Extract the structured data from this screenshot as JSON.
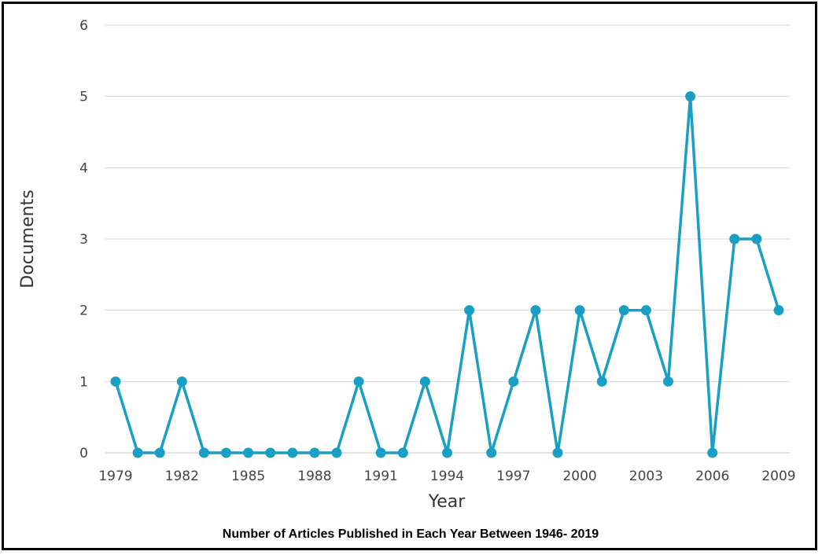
{
  "chart_data": {
    "type": "line",
    "title": "Number of Articles Published in Each Year Between 1946- 2019",
    "xlabel": "Year",
    "ylabel": "Documents",
    "x": [
      1979,
      1980,
      1981,
      1982,
      1983,
      1984,
      1985,
      1986,
      1987,
      1988,
      1989,
      1990,
      1991,
      1992,
      1993,
      1994,
      1995,
      1996,
      1997,
      1998,
      1999,
      2000,
      2001,
      2002,
      2003,
      2004,
      2005,
      2006,
      2007,
      2008,
      2009
    ],
    "series": [
      {
        "values": [
          1,
          0,
          0,
          1,
          0,
          0,
          0,
          0,
          0,
          0,
          0,
          1,
          0,
          0,
          1,
          0,
          2,
          0,
          1,
          2,
          0,
          2,
          1,
          2,
          2,
          1,
          5,
          0,
          3,
          3,
          2
        ]
      }
    ],
    "x_ticks": [
      "1979",
      "1982",
      "1985",
      "1988",
      "1991",
      "1994",
      "1997",
      "2000",
      "2003",
      "2006",
      "2009"
    ],
    "y_ticks": [
      "0",
      "1",
      "2",
      "3",
      "4",
      "5",
      "6"
    ],
    "xlim": [
      1979,
      2009
    ],
    "ylim": [
      0,
      6
    ],
    "grid": "horizontal",
    "legend": "none",
    "colors": {
      "line": "#1a9fc4",
      "grid": "#d9d9d9",
      "border": "#000000"
    }
  }
}
